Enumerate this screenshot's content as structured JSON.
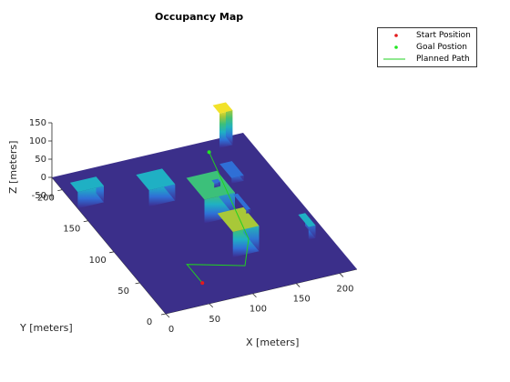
{
  "chart_data": {
    "type": "3d-occupancy-map",
    "title": "Occupancy Map",
    "xlabel": "X [meters]",
    "ylabel": "Y [meters]",
    "zlabel": "Z [meters]",
    "xlim": [
      0,
      220
    ],
    "ylim": [
      0,
      220
    ],
    "zlim": [
      -60,
      150
    ],
    "x_ticks": [
      0,
      50,
      100,
      150,
      200
    ],
    "y_ticks": [
      0,
      50,
      100,
      150,
      200
    ],
    "z_ticks": [
      -50,
      0,
      50,
      100,
      150
    ],
    "grid": false,
    "legend": {
      "placement": "top-right",
      "entries": [
        {
          "label": "Start Position",
          "color": "#e31a1c",
          "marker": "dot"
        },
        {
          "label": "Goal Postion",
          "color": "#22e622",
          "marker": "dot"
        },
        {
          "label": "Planned Path",
          "color": "#22d022",
          "marker": "line"
        }
      ]
    },
    "ground_color": "#3b2f8a",
    "colormap": [
      "#3e2b8e",
      "#2f6fd6",
      "#1fb0c4",
      "#3cc07a",
      "#a8c838",
      "#f2e22a"
    ],
    "obstacles": [
      {
        "x": [
          185,
          200
        ],
        "y": [
          207,
          220
        ],
        "z": [
          0,
          95
        ]
      },
      {
        "x": [
          0,
          30
        ],
        "y": [
          170,
          185
        ],
        "z": [
          0,
          45
        ]
      },
      {
        "x": [
          70,
          100
        ],
        "y": [
          150,
          175
        ],
        "z": [
          0,
          45
        ]
      },
      {
        "x": [
          110,
          145
        ],
        "y": [
          110,
          145
        ],
        "z": [
          0,
          65
        ]
      },
      {
        "x": [
          110,
          140
        ],
        "y": [
          55,
          85
        ],
        "z": [
          0,
          70
        ]
      },
      {
        "x": [
          197,
          205
        ],
        "y": [
          55,
          75
        ],
        "z": [
          0,
          35
        ]
      },
      {
        "x": [
          168,
          182
        ],
        "y": [
          155,
          178
        ],
        "z": [
          0,
          15
        ]
      },
      {
        "x": [
          158,
          163
        ],
        "y": [
          110,
          135
        ],
        "z": [
          0,
          10
        ]
      },
      {
        "x": [
          148,
          155
        ],
        "y": [
          155,
          160
        ],
        "z": [
          0,
          12
        ]
      }
    ],
    "start": {
      "x": 60,
      "y": 30,
      "z": 0
    },
    "goal": {
      "x": 160,
      "y": 185,
      "z": 40
    },
    "path": [
      {
        "x": 60,
        "y": 30,
        "z": 0
      },
      {
        "x": 60,
        "y": 60,
        "z": 0
      },
      {
        "x": 115,
        "y": 40,
        "z": 0
      },
      {
        "x": 140,
        "y": 75,
        "z": 0
      },
      {
        "x": 160,
        "y": 185,
        "z": 40
      }
    ]
  }
}
